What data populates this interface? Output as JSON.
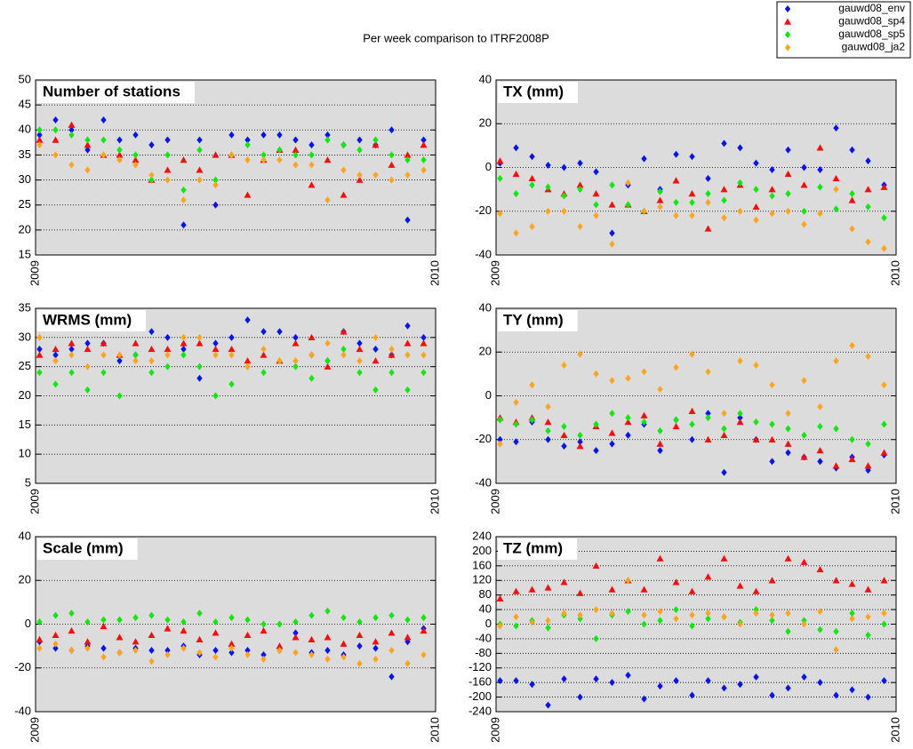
{
  "title": "Per week comparison to ITRF2008P",
  "chart_data": [
    {
      "type": "scatter",
      "title": "Number of stations",
      "xlim": [
        2009,
        2010
      ],
      "xticks": [
        2009,
        2010
      ],
      "ylim": [
        15,
        50
      ],
      "yticks": [
        15,
        20,
        25,
        30,
        35,
        40,
        45,
        50
      ],
      "grid": true,
      "x": [
        2009.01,
        2009.05,
        2009.09,
        2009.13,
        2009.17,
        2009.21,
        2009.25,
        2009.29,
        2009.33,
        2009.37,
        2009.41,
        2009.45,
        2009.49,
        2009.53,
        2009.57,
        2009.61,
        2009.65,
        2009.69,
        2009.73,
        2009.77,
        2009.81,
        2009.85,
        2009.89,
        2009.93,
        2009.97
      ],
      "series": [
        {
          "name": "gauwd08_env",
          "color": "#0a14e6",
          "marker": "diamond",
          "values": [
            39,
            42,
            40,
            36,
            42,
            38,
            39,
            37,
            38,
            21,
            38,
            25,
            39,
            38,
            39,
            39,
            38,
            37,
            39,
            37,
            38,
            37,
            40,
            22,
            38
          ]
        },
        {
          "name": "gauwd08_sp4",
          "color": "#f01010",
          "marker": "triangle",
          "values": [
            38,
            38,
            41,
            37,
            35,
            35,
            34,
            30,
            32,
            34,
            32,
            35,
            35,
            27,
            34,
            36,
            36,
            29,
            34,
            27,
            30,
            37,
            33,
            35,
            37
          ]
        },
        {
          "name": "gauwd08_sp5",
          "color": "#10e610",
          "marker": "diamond",
          "values": [
            40,
            40,
            39,
            38,
            38,
            36,
            35,
            30,
            35,
            28,
            36,
            30,
            35,
            37,
            35,
            36,
            35,
            35,
            38,
            37,
            36,
            38,
            35,
            34,
            34
          ]
        },
        {
          "name": "gauwd08_ja2",
          "color": "#ffa520",
          "marker": "diamond",
          "values": [
            37,
            35,
            33,
            32,
            35,
            34,
            33,
            31,
            30,
            26,
            30,
            29,
            35,
            34,
            34,
            34,
            33,
            33,
            26,
            32,
            31,
            31,
            30,
            31,
            32
          ]
        }
      ]
    },
    {
      "type": "scatter",
      "title": "TX (mm)",
      "xlim": [
        2009,
        2010
      ],
      "xticks": [
        2009,
        2010
      ],
      "ylim": [
        -40,
        40
      ],
      "yticks": [
        -40,
        -20,
        0,
        20,
        40
      ],
      "grid": true,
      "x": [
        2009.01,
        2009.05,
        2009.09,
        2009.13,
        2009.17,
        2009.21,
        2009.25,
        2009.29,
        2009.33,
        2009.37,
        2009.41,
        2009.45,
        2009.49,
        2009.53,
        2009.57,
        2009.61,
        2009.65,
        2009.69,
        2009.73,
        2009.77,
        2009.81,
        2009.85,
        2009.89,
        2009.93,
        2009.97
      ],
      "series": [
        {
          "name": "gauwd08_env",
          "color": "#0a14e6",
          "marker": "diamond",
          "values": [
            2,
            9,
            5,
            1,
            0,
            2,
            -2,
            -30,
            -8,
            4,
            -10,
            6,
            5,
            -5,
            11,
            9,
            2,
            -1,
            8,
            0,
            -1,
            18,
            8,
            3,
            -8
          ]
        },
        {
          "name": "gauwd08_sp4",
          "color": "#f01010",
          "marker": "triangle",
          "values": [
            3,
            -3,
            -5,
            -10,
            -12,
            -8,
            -12,
            -17,
            -17,
            -20,
            -15,
            -6,
            -12,
            -28,
            -10,
            -8,
            -18,
            -10,
            -3,
            -8,
            9,
            -5,
            -15,
            -10,
            -9
          ]
        },
        {
          "name": "gauwd08_sp5",
          "color": "#10e610",
          "marker": "diamond",
          "values": [
            -5,
            -12,
            -8,
            -9,
            -13,
            -10,
            -17,
            -8,
            -17,
            -20,
            -11,
            -16,
            -16,
            -12,
            -15,
            -7,
            -10,
            -13,
            -12,
            -20,
            -9,
            -19,
            -12,
            -18,
            -23
          ]
        },
        {
          "name": "gauwd08_ja2",
          "color": "#ffa520",
          "marker": "diamond",
          "values": [
            -21,
            -30,
            -27,
            -20,
            -20,
            -27,
            -22,
            -35,
            -7,
            -20,
            -18,
            -22,
            -22,
            -16,
            -23,
            -20,
            -24,
            -21,
            -20,
            -26,
            -21,
            -10,
            -28,
            -34,
            -37
          ]
        }
      ]
    },
    {
      "type": "scatter",
      "title": "WRMS (mm)",
      "xlim": [
        2009,
        2010
      ],
      "xticks": [
        2009,
        2010
      ],
      "ylim": [
        5,
        35
      ],
      "yticks": [
        5,
        10,
        15,
        20,
        25,
        30,
        35
      ],
      "grid": true,
      "x": [
        2009.01,
        2009.05,
        2009.09,
        2009.13,
        2009.17,
        2009.21,
        2009.25,
        2009.29,
        2009.33,
        2009.37,
        2009.41,
        2009.45,
        2009.49,
        2009.53,
        2009.57,
        2009.61,
        2009.65,
        2009.69,
        2009.73,
        2009.77,
        2009.81,
        2009.85,
        2009.89,
        2009.93,
        2009.97
      ],
      "series": [
        {
          "name": "gauwd08_env",
          "color": "#0a14e6",
          "marker": "diamond",
          "values": [
            28,
            27,
            28,
            29,
            29,
            26,
            27,
            31,
            30,
            28,
            23,
            29,
            30,
            33,
            31,
            31,
            30,
            27,
            26,
            31,
            29,
            28,
            27,
            32,
            30
          ]
        },
        {
          "name": "gauwd08_sp4",
          "color": "#f01010",
          "marker": "triangle",
          "values": [
            27,
            28,
            29,
            28,
            29,
            27,
            29,
            28,
            28,
            29,
            29,
            28,
            28,
            26,
            27,
            26,
            29,
            30,
            25,
            31,
            28,
            26,
            27,
            29,
            29
          ]
        },
        {
          "name": "gauwd08_sp5",
          "color": "#10e610",
          "marker": "diamond",
          "values": [
            24,
            22,
            24,
            21,
            24,
            20,
            27,
            24,
            25,
            27,
            25,
            20,
            22,
            25,
            24,
            26,
            25,
            23,
            26,
            28,
            24,
            21,
            24,
            21,
            24
          ]
        },
        {
          "name": "gauwd08_ja2",
          "color": "#ffa520",
          "marker": "diamond",
          "values": [
            30,
            26,
            27,
            25,
            27,
            27,
            26,
            26,
            27,
            30,
            30,
            27,
            27,
            25,
            28,
            26,
            26,
            27,
            29,
            27,
            26,
            30,
            28,
            27,
            27
          ]
        }
      ]
    },
    {
      "type": "scatter",
      "title": "TY (mm)",
      "xlim": [
        2009,
        2010
      ],
      "xticks": [
        2009,
        2010
      ],
      "ylim": [
        -40,
        40
      ],
      "yticks": [
        -40,
        -20,
        0,
        20,
        40
      ],
      "grid": true,
      "x": [
        2009.01,
        2009.05,
        2009.09,
        2009.13,
        2009.17,
        2009.21,
        2009.25,
        2009.29,
        2009.33,
        2009.37,
        2009.41,
        2009.45,
        2009.49,
        2009.53,
        2009.57,
        2009.61,
        2009.65,
        2009.69,
        2009.73,
        2009.77,
        2009.81,
        2009.85,
        2009.89,
        2009.93,
        2009.97
      ],
      "series": [
        {
          "name": "gauwd08_env",
          "color": "#0a14e6",
          "marker": "diamond",
          "values": [
            -20,
            -21,
            -12,
            -20,
            -23,
            -21,
            -25,
            -22,
            -18,
            -13,
            -25,
            -11,
            -20,
            -8,
            -35,
            -10,
            -20,
            -30,
            -26,
            -28,
            -30,
            -33,
            -28,
            -34,
            -27
          ]
        },
        {
          "name": "gauwd08_sp4",
          "color": "#f01010",
          "marker": "triangle",
          "values": [
            -10,
            -12,
            -10,
            -12,
            -18,
            -23,
            -14,
            -17,
            -12,
            -9,
            -22,
            -14,
            -7,
            -20,
            -18,
            -12,
            -20,
            -20,
            -22,
            -28,
            -25,
            -32,
            -29,
            -32,
            -26
          ]
        },
        {
          "name": "gauwd08_sp5",
          "color": "#10e610",
          "marker": "diamond",
          "values": [
            -11,
            -13,
            -11,
            -16,
            -14,
            -18,
            -13,
            -8,
            -10,
            -12,
            -16,
            -11,
            -13,
            -10,
            -15,
            -8,
            -12,
            -13,
            -15,
            -18,
            -14,
            -15,
            -20,
            -22,
            -13
          ]
        },
        {
          "name": "gauwd08_ja2",
          "color": "#ffa520",
          "marker": "diamond",
          "values": [
            -22,
            -3,
            5,
            -5,
            14,
            19,
            10,
            7,
            8,
            11,
            3,
            13,
            19,
            11,
            -8,
            16,
            14,
            5,
            -8,
            7,
            -5,
            16,
            23,
            18,
            5
          ]
        }
      ]
    },
    {
      "type": "scatter",
      "title": "Scale (mm)",
      "xlim": [
        2009,
        2010
      ],
      "xticks": [
        2009,
        2010
      ],
      "ylim": [
        -40,
        40
      ],
      "yticks": [
        -40,
        -20,
        0,
        20,
        40
      ],
      "grid": true,
      "x": [
        2009.01,
        2009.05,
        2009.09,
        2009.13,
        2009.17,
        2009.21,
        2009.25,
        2009.29,
        2009.33,
        2009.37,
        2009.41,
        2009.45,
        2009.49,
        2009.53,
        2009.57,
        2009.61,
        2009.65,
        2009.69,
        2009.73,
        2009.77,
        2009.81,
        2009.85,
        2009.89,
        2009.93,
        2009.97
      ],
      "series": [
        {
          "name": "gauwd08_env",
          "color": "#0a14e6",
          "marker": "diamond",
          "values": [
            -8,
            -11,
            -12,
            -10,
            -11,
            -13,
            -11,
            -12,
            -12,
            -10,
            -14,
            -12,
            -13,
            -12,
            -14,
            -12,
            -4,
            -13,
            -12,
            -14,
            -10,
            -11,
            -24,
            -8,
            -2
          ]
        },
        {
          "name": "gauwd08_sp4",
          "color": "#f01010",
          "marker": "triangle",
          "values": [
            -7,
            -5,
            -3,
            -8,
            -1,
            -6,
            -8,
            -5,
            -2,
            -3,
            -7,
            -4,
            -9,
            -5,
            -3,
            -10,
            -6,
            -7,
            -6,
            -9,
            -5,
            -8,
            -4,
            -6,
            -3
          ]
        },
        {
          "name": "gauwd08_sp5",
          "color": "#10e610",
          "marker": "diamond",
          "values": [
            1,
            4,
            5,
            1,
            2,
            2,
            3,
            4,
            2,
            1,
            5,
            1,
            3,
            2,
            0,
            0,
            1,
            4,
            6,
            3,
            1,
            3,
            4,
            2,
            3
          ]
        },
        {
          "name": "gauwd08_ja2",
          "color": "#ffa520",
          "marker": "diamond",
          "values": [
            -11,
            -9,
            -12,
            -11,
            -15,
            -13,
            -12,
            -17,
            -14,
            -11,
            -13,
            -15,
            -11,
            -14,
            -16,
            -12,
            -13,
            -14,
            -16,
            -15,
            -18,
            -16,
            -12,
            -18,
            -14
          ]
        }
      ]
    },
    {
      "type": "scatter",
      "title": "TZ (mm)",
      "xlim": [
        2009,
        2010
      ],
      "xticks": [
        2009,
        2010
      ],
      "ylim": [
        -240,
        240
      ],
      "yticks": [
        -240,
        -200,
        -160,
        -120,
        -80,
        -40,
        0,
        40,
        80,
        120,
        160,
        200,
        240
      ],
      "grid": true,
      "x": [
        2009.01,
        2009.05,
        2009.09,
        2009.13,
        2009.17,
        2009.21,
        2009.25,
        2009.29,
        2009.33,
        2009.37,
        2009.41,
        2009.45,
        2009.49,
        2009.53,
        2009.57,
        2009.61,
        2009.65,
        2009.69,
        2009.73,
        2009.77,
        2009.81,
        2009.85,
        2009.89,
        2009.93,
        2009.97
      ],
      "series": [
        {
          "name": "gauwd08_env",
          "color": "#0a14e6",
          "marker": "diamond",
          "values": [
            -155,
            -155,
            -165,
            -222,
            -150,
            -200,
            -150,
            -160,
            -140,
            -205,
            -170,
            -155,
            -195,
            -155,
            -175,
            -165,
            -145,
            -195,
            -175,
            -145,
            -160,
            -195,
            -180,
            -200,
            -155
          ]
        },
        {
          "name": "gauwd08_sp4",
          "color": "#f01010",
          "marker": "triangle",
          "values": [
            70,
            90,
            95,
            100,
            115,
            85,
            160,
            95,
            120,
            95,
            180,
            115,
            90,
            130,
            180,
            105,
            90,
            120,
            180,
            170,
            150,
            120,
            110,
            95,
            120
          ]
        },
        {
          "name": "gauwd08_sp5",
          "color": "#10e610",
          "marker": "diamond",
          "values": [
            0,
            -5,
            10,
            -10,
            25,
            15,
            -40,
            25,
            35,
            0,
            10,
            40,
            -5,
            15,
            20,
            5,
            40,
            10,
            -20,
            10,
            -15,
            -20,
            30,
            -30,
            0
          ]
        },
        {
          "name": "gauwd08_ja2",
          "color": "#ffa520",
          "marker": "diamond",
          "values": [
            -5,
            20,
            5,
            10,
            30,
            25,
            40,
            30,
            120,
            25,
            35,
            15,
            25,
            30,
            20,
            0,
            30,
            25,
            30,
            0,
            35,
            -70,
            15,
            20,
            30
          ]
        }
      ]
    }
  ]
}
